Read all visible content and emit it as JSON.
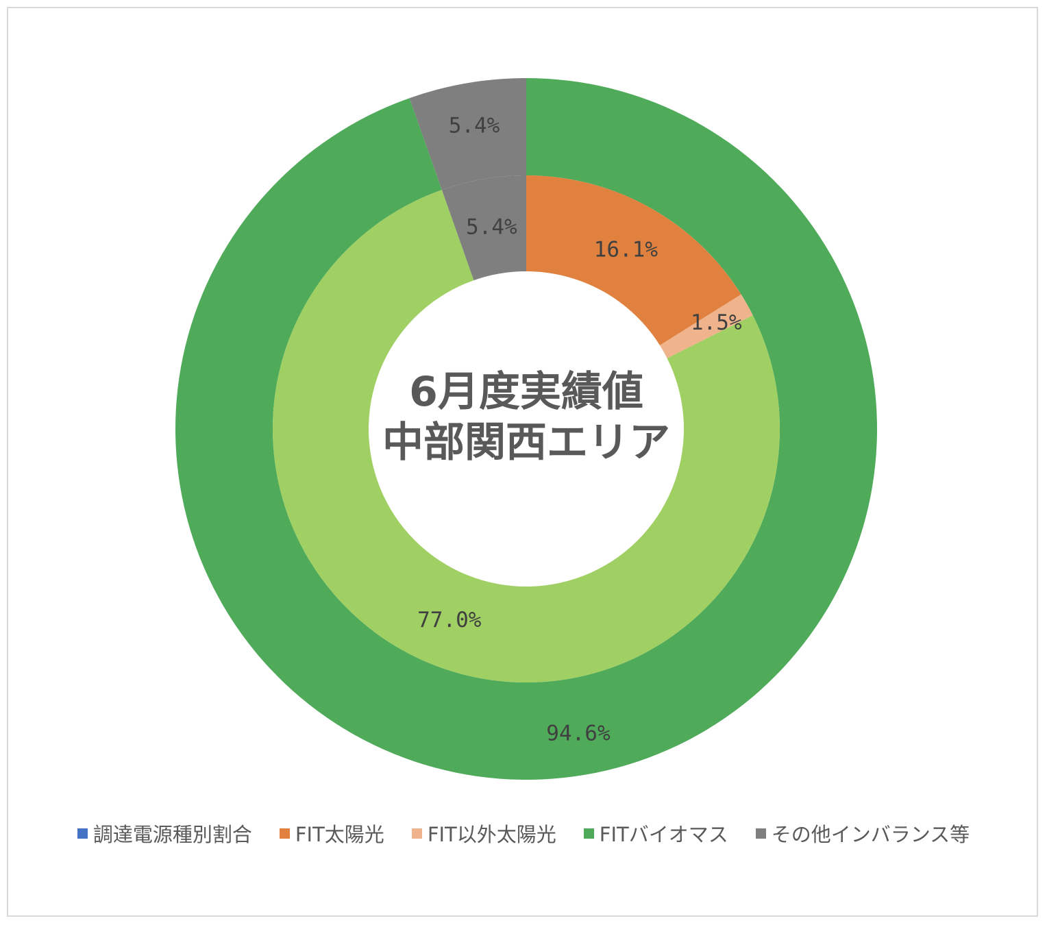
{
  "chart_data": {
    "type": "donut",
    "title_lines": [
      "6月度実績値",
      "中部関西エリア"
    ],
    "legend": [
      {
        "label": "調達電源種別割合",
        "color": "#4472c4"
      },
      {
        "label": "FIT太陽光",
        "color": "#e0813f"
      },
      {
        "label": "FIT以外太陽光",
        "color": "#efb48c"
      },
      {
        "label": "FITバイオマス",
        "color": "#4faa5a"
      },
      {
        "label": "その他インバランス等",
        "color": "#7f7f7f"
      }
    ],
    "rings": [
      {
        "ring": "outer",
        "slices": [
          {
            "category": "FIT太陽光",
            "value": 0.0,
            "label": ""
          },
          {
            "category": "FIT以外太陽光",
            "value": 0.0,
            "label": ""
          },
          {
            "category": "FITバイオマス",
            "value": 94.6,
            "label": "94.6%"
          },
          {
            "category": "その他インバランス等",
            "value": 5.4,
            "label": "5.4%"
          }
        ]
      },
      {
        "ring": "inner",
        "slices": [
          {
            "category": "FIT太陽光",
            "value": 16.1,
            "label": "16.1%"
          },
          {
            "category": "FIT以外太陽光",
            "value": 1.5,
            "label": "1.5%"
          },
          {
            "category": "FITバイオマス",
            "value": 77.0,
            "label": "77.0%"
          },
          {
            "category": "その他インバランス等",
            "value": 5.4,
            "label": "5.4%"
          }
        ]
      }
    ],
    "inner_ring_colors": {
      "FITバイオマス": "#a0cf63"
    },
    "legend_position": "bottom"
  }
}
